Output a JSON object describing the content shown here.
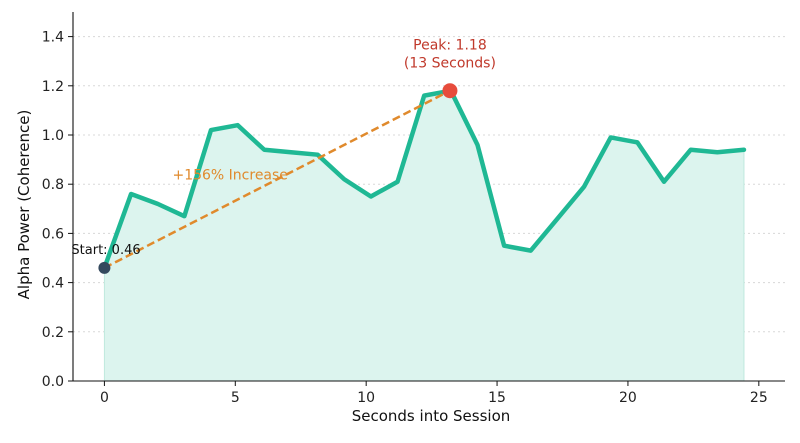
{
  "chart_data": {
    "type": "area",
    "xlabel": "Seconds into Session",
    "ylabel": "Alpha Power (Coherence)",
    "xlim": [
      -1.2,
      26
    ],
    "ylim": [
      0,
      1.5
    ],
    "x_ticks": [
      0,
      5,
      10,
      15,
      20,
      25
    ],
    "y_ticks": [
      0.0,
      0.2,
      0.4,
      0.6,
      0.8,
      1.0,
      1.2,
      1.4
    ],
    "grid": "horizontal dotted",
    "colors": {
      "line": "#1fb894",
      "fill": "#dcf4ee",
      "trend": "#e08a2c",
      "start_marker": "#34495e",
      "peak_marker": "#e74c3c",
      "peak_text": "#c0392b",
      "trend_text": "#e08a2c"
    },
    "series": [
      {
        "x": [
          0,
          1,
          2,
          3,
          4,
          5,
          6,
          7,
          8,
          9,
          10,
          11,
          12,
          13,
          14,
          15,
          16,
          17,
          18,
          19,
          20,
          21,
          22,
          23,
          24
        ],
        "y": [
          0.46,
          0.76,
          0.72,
          0.67,
          1.02,
          1.04,
          0.94,
          0.93,
          0.92,
          0.82,
          0.75,
          0.81,
          1.16,
          1.18,
          0.96,
          0.55,
          0.53,
          0.66,
          0.79,
          0.99,
          0.97,
          0.81,
          0.94,
          0.93,
          0.94
        ],
        "x_scale": 1.018
      }
    ],
    "annotations": {
      "start_label": "Start: 0.46",
      "start_point": {
        "x": 0,
        "y": 0.46
      },
      "peak_label_line1": "Peak: 1.18",
      "peak_label_line2": "(13 Seconds)",
      "peak_point": {
        "x": 13.2,
        "y": 1.18
      },
      "trend_label": "+156% Increase"
    }
  }
}
